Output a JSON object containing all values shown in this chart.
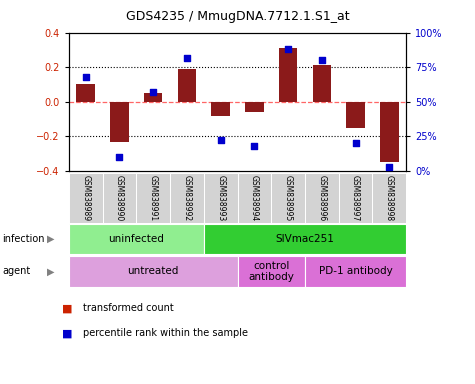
{
  "title": "GDS4235 / MmugDNA.7712.1.S1_at",
  "samples": [
    "GSM838989",
    "GSM838990",
    "GSM838991",
    "GSM838992",
    "GSM838993",
    "GSM838994",
    "GSM838995",
    "GSM838996",
    "GSM838997",
    "GSM838998"
  ],
  "transformed_count": [
    0.1,
    -0.23,
    0.05,
    0.19,
    -0.08,
    -0.06,
    0.31,
    0.21,
    -0.15,
    -0.35
  ],
  "percentile_rank": [
    68,
    10,
    57,
    82,
    22,
    18,
    88,
    80,
    20,
    3
  ],
  "ylim": [
    -0.4,
    0.4
  ],
  "y2lim": [
    0,
    100
  ],
  "yticks": [
    -0.4,
    -0.2,
    0.0,
    0.2,
    0.4
  ],
  "y2ticks": [
    0,
    25,
    50,
    75,
    100
  ],
  "y2ticklabels": [
    "0%",
    "25%",
    "50%",
    "75%",
    "100%"
  ],
  "bar_color": "#8B1A1A",
  "dot_color": "#0000CD",
  "infection_groups": [
    {
      "label": "uninfected",
      "start": 0,
      "end": 3,
      "color": "#90EE90"
    },
    {
      "label": "SIVmac251",
      "start": 4,
      "end": 9,
      "color": "#32CD32"
    }
  ],
  "agent_groups": [
    {
      "label": "untreated",
      "start": 0,
      "end": 4,
      "color": "#DDA0DD"
    },
    {
      "label": "control\nantibody",
      "start": 5,
      "end": 6,
      "color": "#DA70D6"
    },
    {
      "label": "PD-1 antibody",
      "start": 7,
      "end": 9,
      "color": "#DA70D6"
    }
  ],
  "hline_color": "#FF6666",
  "background_color": "#FFFFFF",
  "legend_items": [
    {
      "label": "transformed count",
      "color": "#CC2200"
    },
    {
      "label": "percentile rank within the sample",
      "color": "#0000CC"
    }
  ]
}
